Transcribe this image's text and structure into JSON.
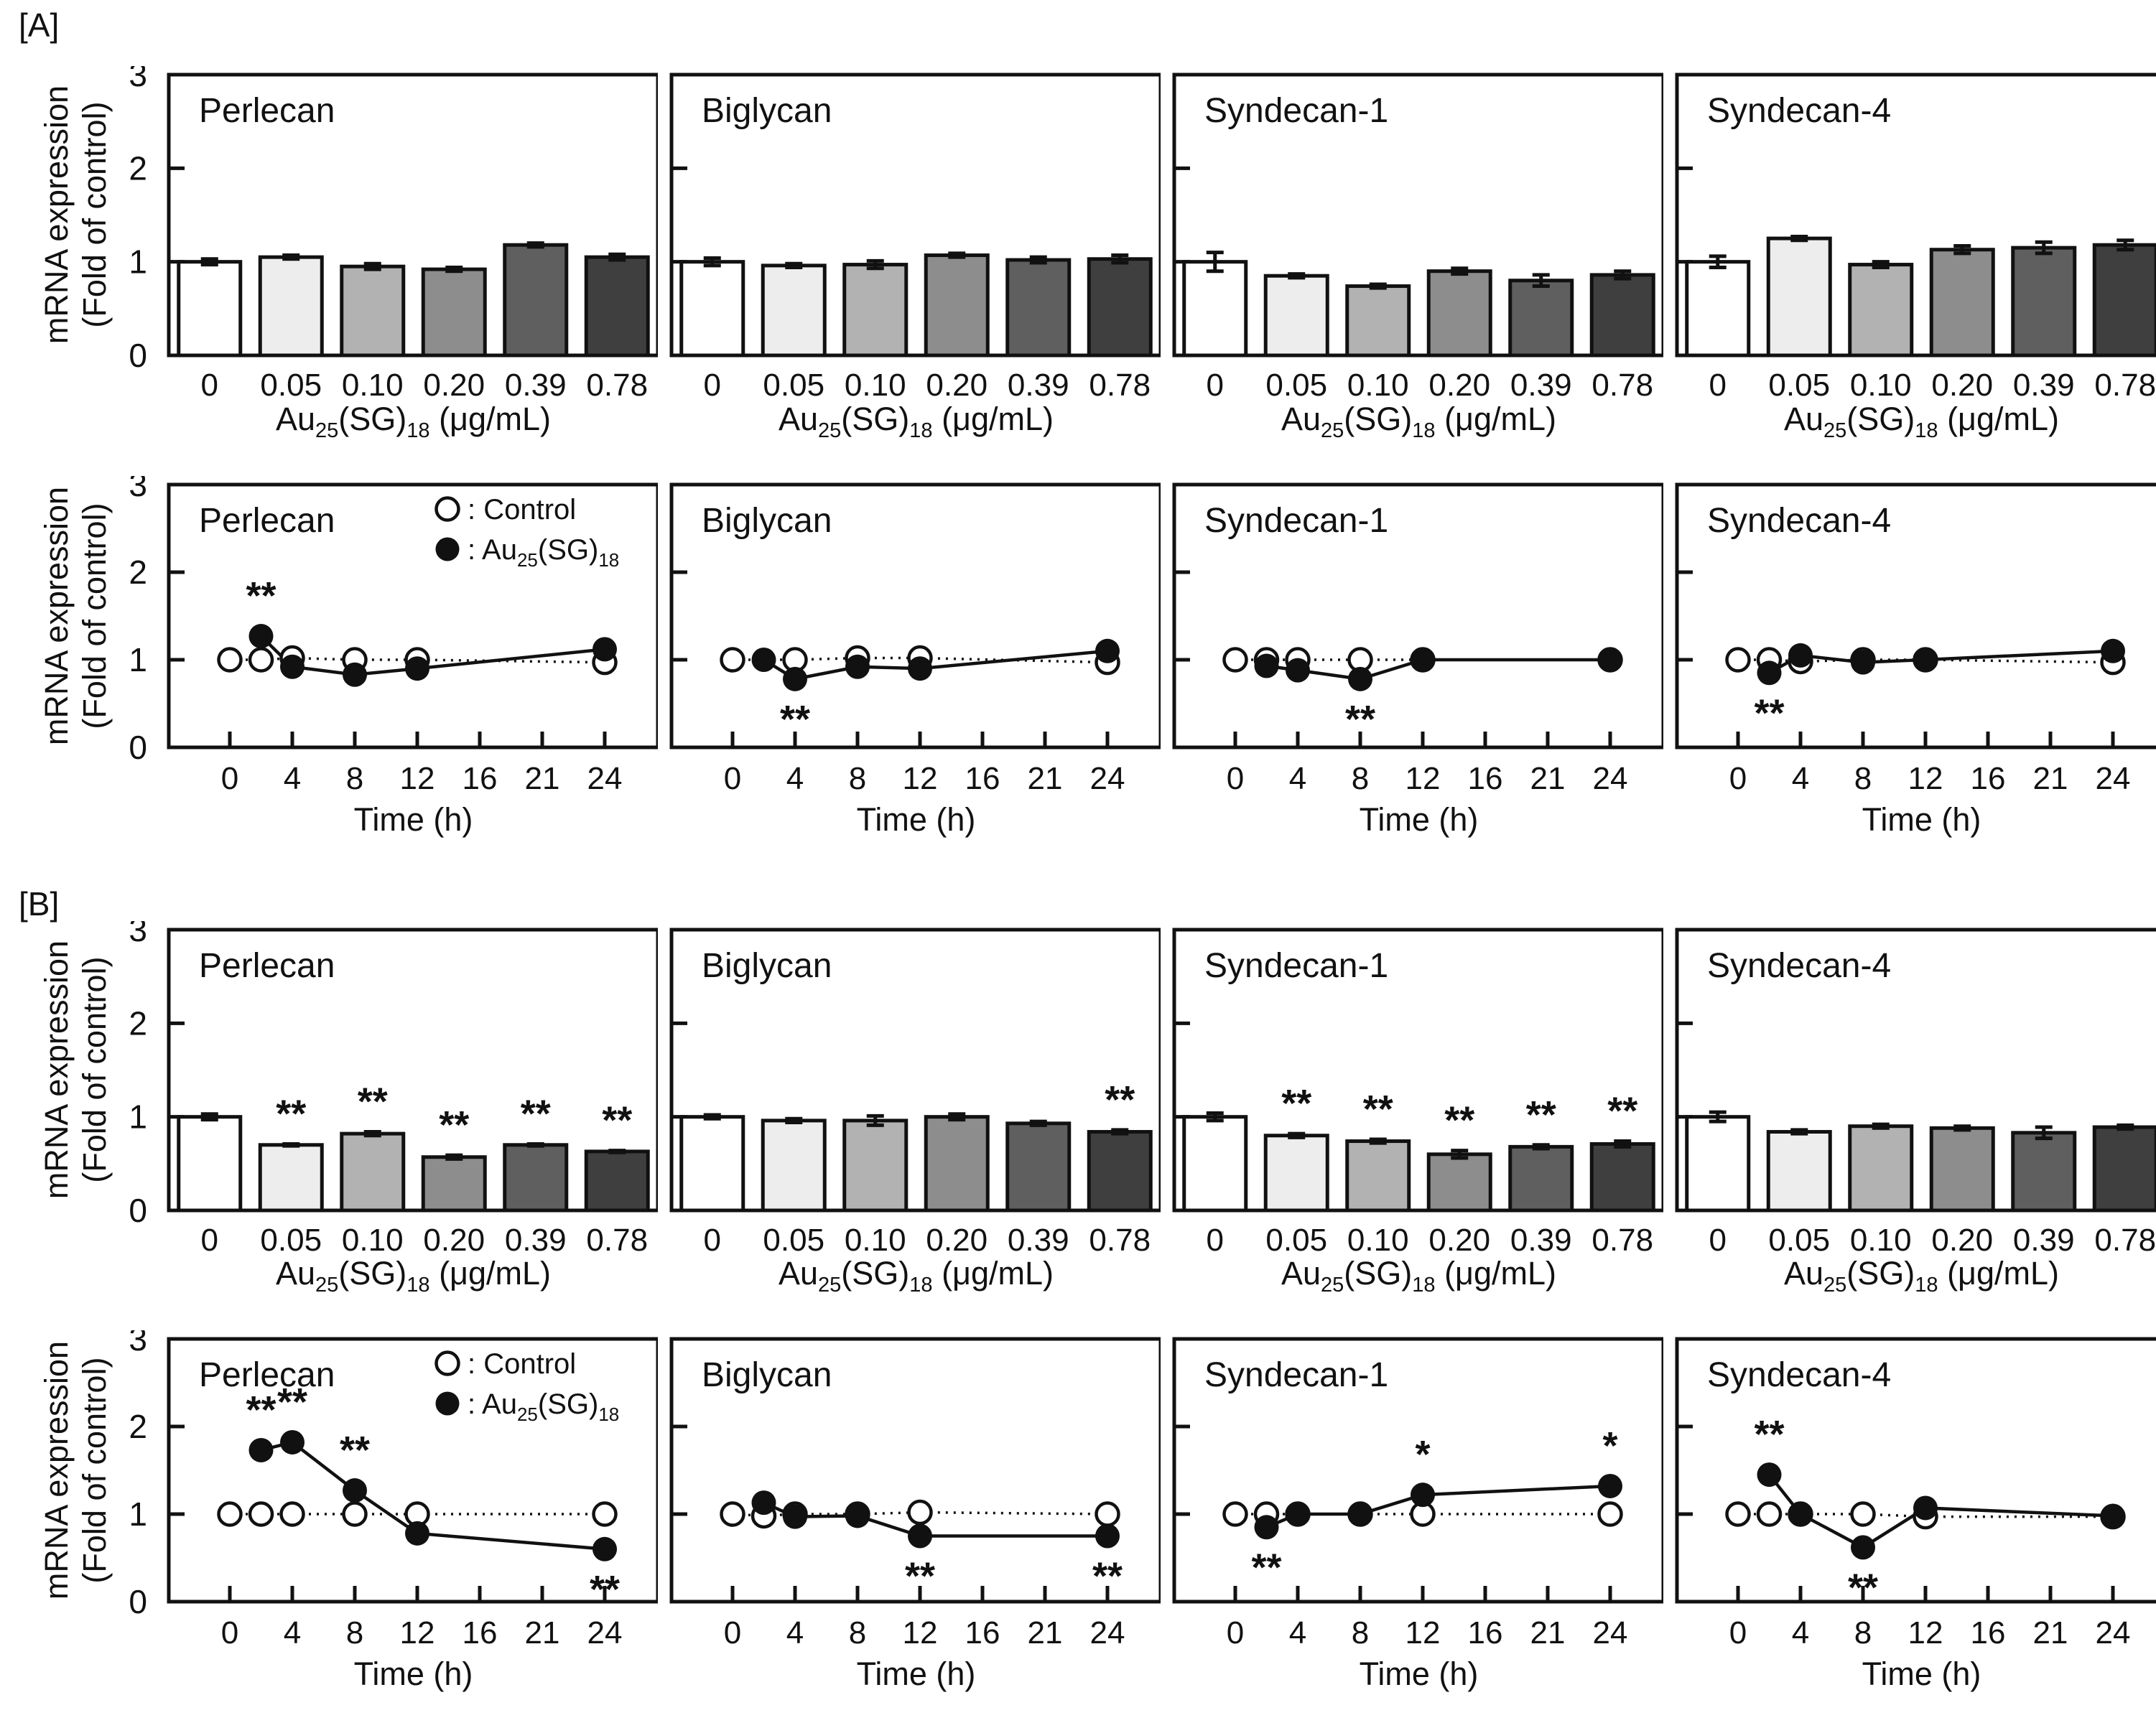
{
  "figure": {
    "section_a_label": "[A]",
    "section_b_label": "[B]",
    "y_axis_label_line1": "mRNA expression",
    "y_axis_label_line2": "(Fold of control)",
    "time_axis_label": "Time (h)",
    "au": {
      "pre": "Au",
      "sub_25": "25",
      "mid": "(SG)",
      "sub_18": "18",
      "unit": " (μg/mL)"
    },
    "legend_control_label": "Control",
    "legend_separator": ": ",
    "yticks": [
      "0",
      "1",
      "2",
      "3"
    ],
    "line_xticks": [
      "0",
      "4",
      "8",
      "12",
      "16",
      "21",
      "24"
    ],
    "bar_colors": [
      "#ffffff",
      "#ededed",
      "#b2b2b2",
      "#8d8d8d",
      "#5f5f5f",
      "#3f3f3f"
    ],
    "ink_color": "#111111",
    "ylim": [
      0,
      3
    ]
  },
  "chart_data": [
    {
      "type": "bar",
      "section": "A",
      "title": "Perlecan",
      "first_col": true,
      "legend": false,
      "categories": [
        "0",
        "0.05",
        "0.10",
        "0.20",
        "0.39",
        "0.78"
      ],
      "values": [
        1.0,
        1.05,
        0.95,
        0.92,
        1.18,
        1.05
      ],
      "errors": [
        0.03,
        0.02,
        0.03,
        0.02,
        0.02,
        0.03
      ],
      "sig": [
        "",
        "",
        "",
        "",
        "",
        ""
      ]
    },
    {
      "type": "bar",
      "section": "A",
      "title": "Biglycan",
      "first_col": false,
      "legend": false,
      "categories": [
        "0",
        "0.05",
        "0.10",
        "0.20",
        "0.39",
        "0.78"
      ],
      "values": [
        1.0,
        0.96,
        0.97,
        1.07,
        1.02,
        1.03
      ],
      "errors": [
        0.04,
        0.02,
        0.04,
        0.02,
        0.03,
        0.04
      ],
      "sig": [
        "",
        "",
        "",
        "",
        "",
        ""
      ]
    },
    {
      "type": "bar",
      "section": "A",
      "title": "Syndecan-1",
      "first_col": false,
      "legend": false,
      "categories": [
        "0",
        "0.05",
        "0.10",
        "0.20",
        "0.39",
        "0.78"
      ],
      "values": [
        1.0,
        0.85,
        0.74,
        0.9,
        0.8,
        0.86
      ],
      "errors": [
        0.1,
        0.02,
        0.02,
        0.03,
        0.06,
        0.04
      ],
      "sig": [
        "",
        "",
        "",
        "",
        "",
        ""
      ]
    },
    {
      "type": "bar",
      "section": "A",
      "title": "Syndecan-4",
      "first_col": false,
      "legend": false,
      "categories": [
        "0",
        "0.05",
        "0.10",
        "0.20",
        "0.39",
        "0.78"
      ],
      "values": [
        1.0,
        1.25,
        0.97,
        1.13,
        1.15,
        1.18
      ],
      "errors": [
        0.06,
        0.02,
        0.03,
        0.04,
        0.06,
        0.05
      ],
      "sig": [
        "",
        "",
        "",
        "",
        "",
        ""
      ]
    },
    {
      "type": "line",
      "section": "A",
      "title": "Perlecan",
      "first_col": true,
      "legend": true,
      "xtick_labels": [
        "0",
        "4",
        "8",
        "12",
        "16",
        "21",
        "24"
      ],
      "control": {
        "x": [
          0,
          2,
          4,
          8,
          12,
          24
        ],
        "y": [
          1.0,
          1.0,
          1.02,
          1.0,
          1.0,
          0.97
        ]
      },
      "treated": {
        "x": [
          2,
          4,
          8,
          12,
          24
        ],
        "y": [
          1.27,
          0.92,
          0.83,
          0.9,
          1.12
        ],
        "errors": [
          0.03,
          0.03,
          0.03,
          0.03,
          0.03
        ]
      },
      "annotations": [
        {
          "t": 2,
          "v": 1.27,
          "text": "**",
          "pos": "above"
        }
      ]
    },
    {
      "type": "line",
      "section": "A",
      "title": "Biglycan",
      "first_col": false,
      "legend": false,
      "xtick_labels": [
        "0",
        "4",
        "8",
        "12",
        "16",
        "21",
        "24"
      ],
      "control": {
        "x": [
          0,
          4,
          8,
          12,
          24
        ],
        "y": [
          1.0,
          1.0,
          1.02,
          1.02,
          0.97
        ]
      },
      "treated": {
        "x": [
          2,
          4,
          8,
          12,
          24
        ],
        "y": [
          1.0,
          0.78,
          0.92,
          0.9,
          1.1
        ],
        "errors": [
          0.02,
          0.02,
          0.02,
          0.02,
          0.02
        ]
      },
      "annotations": [
        {
          "t": 4,
          "v": 0.78,
          "text": "**",
          "pos": "below"
        }
      ]
    },
    {
      "type": "line",
      "section": "A",
      "title": "Syndecan-1",
      "first_col": false,
      "legend": false,
      "xtick_labels": [
        "0",
        "4",
        "8",
        "12",
        "16",
        "21",
        "24"
      ],
      "control": {
        "x": [
          0,
          2,
          4,
          8,
          12,
          24
        ],
        "y": [
          1.0,
          1.0,
          1.0,
          1.0,
          1.0,
          1.0
        ]
      },
      "treated": {
        "x": [
          2,
          4,
          8,
          12,
          24
        ],
        "y": [
          0.93,
          0.88,
          0.78,
          1.0,
          1.0
        ],
        "errors": [
          0.02,
          0.02,
          0.02,
          0.02,
          0.02
        ]
      },
      "annotations": [
        {
          "t": 8,
          "v": 0.78,
          "text": "**",
          "pos": "below"
        }
      ]
    },
    {
      "type": "line",
      "section": "A",
      "title": "Syndecan-4",
      "first_col": false,
      "legend": false,
      "xtick_labels": [
        "0",
        "4",
        "8",
        "12",
        "16",
        "21",
        "24"
      ],
      "control": {
        "x": [
          0,
          2,
          4,
          8,
          12,
          24
        ],
        "y": [
          1.0,
          1.0,
          0.98,
          1.0,
          1.0,
          0.97
        ]
      },
      "treated": {
        "x": [
          2,
          4,
          8,
          12,
          24
        ],
        "y": [
          0.85,
          1.05,
          0.97,
          1.0,
          1.1
        ],
        "errors": [
          0.02,
          0.02,
          0.02,
          0.02,
          0.02
        ]
      },
      "annotations": [
        {
          "t": 2,
          "v": 0.85,
          "text": "**",
          "pos": "below"
        }
      ]
    },
    {
      "type": "bar",
      "section": "B",
      "title": "Perlecan",
      "first_col": true,
      "legend": false,
      "categories": [
        "0",
        "0.05",
        "0.10",
        "0.20",
        "0.39",
        "0.78"
      ],
      "values": [
        1.0,
        0.7,
        0.82,
        0.57,
        0.7,
        0.63
      ],
      "errors": [
        0.03,
        0.01,
        0.02,
        0.02,
        0.01,
        0.01
      ],
      "sig": [
        "",
        "**",
        "**",
        "**",
        "**",
        "**"
      ]
    },
    {
      "type": "bar",
      "section": "B",
      "title": "Biglycan",
      "first_col": false,
      "legend": false,
      "categories": [
        "0",
        "0.05",
        "0.10",
        "0.20",
        "0.39",
        "0.78"
      ],
      "values": [
        1.0,
        0.96,
        0.96,
        1.0,
        0.93,
        0.84
      ],
      "errors": [
        0.02,
        0.02,
        0.05,
        0.03,
        0.02,
        0.02
      ],
      "sig": [
        "",
        "",
        "",
        "",
        "",
        "**"
      ]
    },
    {
      "type": "bar",
      "section": "B",
      "title": "Syndecan-1",
      "first_col": false,
      "legend": false,
      "categories": [
        "0",
        "0.05",
        "0.10",
        "0.20",
        "0.39",
        "0.78"
      ],
      "values": [
        1.0,
        0.8,
        0.74,
        0.6,
        0.68,
        0.71
      ],
      "errors": [
        0.04,
        0.02,
        0.02,
        0.04,
        0.02,
        0.03
      ],
      "sig": [
        "",
        "**",
        "**",
        "**",
        "**",
        "**"
      ]
    },
    {
      "type": "bar",
      "section": "B",
      "title": "Syndecan-4",
      "first_col": false,
      "legend": false,
      "categories": [
        "0",
        "0.05",
        "0.10",
        "0.20",
        "0.39",
        "0.78"
      ],
      "values": [
        1.0,
        0.84,
        0.9,
        0.88,
        0.83,
        0.89
      ],
      "errors": [
        0.05,
        0.02,
        0.02,
        0.02,
        0.06,
        0.02
      ],
      "sig": [
        "",
        "",
        "",
        "",
        "",
        ""
      ]
    },
    {
      "type": "line",
      "section": "B",
      "title": "Perlecan",
      "first_col": true,
      "legend": true,
      "xtick_labels": [
        "0",
        "4",
        "8",
        "12",
        "16",
        "21",
        "24"
      ],
      "control": {
        "x": [
          0,
          2,
          4,
          8,
          12,
          24
        ],
        "y": [
          1.0,
          1.0,
          1.0,
          1.0,
          1.0,
          1.0
        ]
      },
      "treated": {
        "x": [
          2,
          4,
          8,
          12,
          24
        ],
        "y": [
          1.73,
          1.82,
          1.27,
          0.78,
          0.6
        ],
        "errors": [
          0.04,
          0.08,
          0.05,
          0.03,
          0.03
        ]
      },
      "annotations": [
        {
          "t": 2,
          "v": 1.73,
          "text": "**",
          "pos": "above"
        },
        {
          "t": 4,
          "v": 1.82,
          "text": "**",
          "pos": "above"
        },
        {
          "t": 8,
          "v": 1.27,
          "text": "**",
          "pos": "above"
        },
        {
          "t": 24,
          "v": 0.6,
          "text": "**",
          "pos": "below"
        }
      ]
    },
    {
      "type": "line",
      "section": "B",
      "title": "Biglycan",
      "first_col": false,
      "legend": false,
      "xtick_labels": [
        "0",
        "4",
        "8",
        "12",
        "16",
        "21",
        "24"
      ],
      "control": {
        "x": [
          0,
          2,
          4,
          8,
          12,
          24
        ],
        "y": [
          1.0,
          0.98,
          1.0,
          1.0,
          1.02,
          1.0
        ]
      },
      "treated": {
        "x": [
          2,
          4,
          8,
          12,
          24
        ],
        "y": [
          1.13,
          0.97,
          0.98,
          0.75,
          0.75
        ],
        "errors": [
          0.02,
          0.02,
          0.02,
          0.02,
          0.02
        ]
      },
      "annotations": [
        {
          "t": 12,
          "v": 0.75,
          "text": "**",
          "pos": "below"
        },
        {
          "t": 24,
          "v": 0.75,
          "text": "**",
          "pos": "below"
        }
      ]
    },
    {
      "type": "line",
      "section": "B",
      "title": "Syndecan-1",
      "first_col": false,
      "legend": false,
      "xtick_labels": [
        "0",
        "4",
        "8",
        "12",
        "16",
        "21",
        "24"
      ],
      "control": {
        "x": [
          0,
          2,
          4,
          8,
          12,
          24
        ],
        "y": [
          1.0,
          1.0,
          1.0,
          1.0,
          1.0,
          1.0
        ]
      },
      "treated": {
        "x": [
          2,
          4,
          8,
          12,
          24
        ],
        "y": [
          0.85,
          1.0,
          1.0,
          1.22,
          1.32
        ],
        "errors": [
          0.02,
          0.02,
          0.02,
          0.03,
          0.08
        ]
      },
      "annotations": [
        {
          "t": 2,
          "v": 0.85,
          "text": "**",
          "pos": "below"
        },
        {
          "t": 12,
          "v": 1.22,
          "text": "*",
          "pos": "above"
        },
        {
          "t": 24,
          "v": 1.32,
          "text": "*",
          "pos": "above"
        }
      ]
    },
    {
      "type": "line",
      "section": "B",
      "title": "Syndecan-4",
      "first_col": false,
      "legend": false,
      "xtick_labels": [
        "0",
        "4",
        "8",
        "12",
        "16",
        "21",
        "24"
      ],
      "control": {
        "x": [
          0,
          2,
          4,
          8,
          12,
          24
        ],
        "y": [
          1.0,
          1.0,
          1.0,
          1.0,
          0.97,
          0.97
        ]
      },
      "treated": {
        "x": [
          2,
          4,
          8,
          12,
          24
        ],
        "y": [
          1.45,
          1.0,
          0.62,
          1.07,
          0.98
        ],
        "errors": [
          0.02,
          0.02,
          0.02,
          0.06,
          0.02
        ]
      },
      "annotations": [
        {
          "t": 2,
          "v": 1.45,
          "text": "**",
          "pos": "above"
        },
        {
          "t": 8,
          "v": 0.62,
          "text": "**",
          "pos": "below"
        }
      ]
    }
  ]
}
